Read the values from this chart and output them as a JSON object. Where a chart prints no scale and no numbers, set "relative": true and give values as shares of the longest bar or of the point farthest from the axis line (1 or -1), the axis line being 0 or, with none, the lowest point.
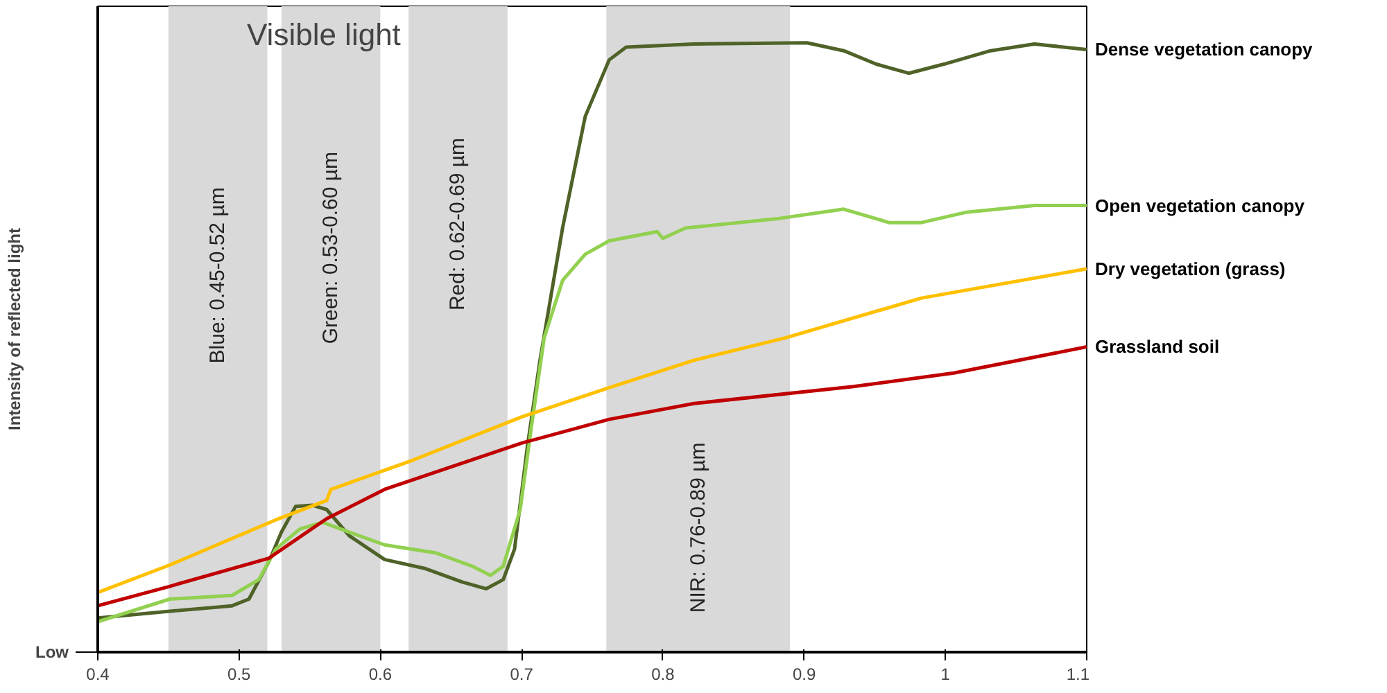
{
  "chart_data": {
    "type": "line",
    "relative": true,
    "ylabel": "Intensity of reflected light",
    "xlim": [
      0.4,
      1.1
    ],
    "xticks": [
      0.4,
      0.5,
      0.6,
      0.7,
      0.8,
      0.9,
      1,
      1.1
    ],
    "grid": false,
    "annotations": [
      "Visible light",
      "Low"
    ],
    "bands": [
      {
        "axis": "x",
        "from": 0.45,
        "to": 0.52,
        "label": "Blue: 0.45-0.52 µm",
        "color": "#d9d9d9"
      },
      {
        "axis": "x",
        "from": 0.53,
        "to": 0.6,
        "label": "Green: 0.53-0.60 µm",
        "color": "#d9d9d9"
      },
      {
        "axis": "x",
        "from": 0.62,
        "to": 0.69,
        "label": "Red: 0.62-0.69 µm",
        "color": "#d9d9d9"
      },
      {
        "axis": "x",
        "from": 0.76,
        "to": 0.89,
        "label": "NIR: 0.76-0.89 µm",
        "color": "#d9d9d9"
      }
    ],
    "series": [
      {
        "name": "Dense vegetation canopy",
        "color": "#4f6228",
        "x": [
          0.4,
          0.451,
          0.495,
          0.507,
          0.521,
          0.53,
          0.54,
          0.552,
          0.562,
          0.578,
          0.603,
          0.632,
          0.658,
          0.675,
          0.687,
          0.695,
          0.704,
          0.713,
          0.729,
          0.745,
          0.762,
          0.774,
          0.822,
          0.902,
          0.928,
          0.951,
          0.974,
          0.999,
          1.032,
          1.063,
          1.1
        ],
        "values": [
          0.056,
          0.067,
          0.076,
          0.087,
          0.148,
          0.197,
          0.239,
          0.241,
          0.234,
          0.191,
          0.152,
          0.137,
          0.115,
          0.104,
          0.119,
          0.169,
          0.336,
          0.479,
          0.696,
          0.879,
          0.972,
          0.993,
          0.998,
          1.0,
          0.987,
          0.965,
          0.95,
          0.965,
          0.987,
          0.998,
          0.989
        ]
      },
      {
        "name": "Open vegetation canopy",
        "color": "#92d050",
        "x": [
          0.4,
          0.451,
          0.495,
          0.514,
          0.526,
          0.543,
          0.559,
          0.578,
          0.603,
          0.639,
          0.665,
          0.678,
          0.687,
          0.699,
          0.707,
          0.716,
          0.729,
          0.745,
          0.762,
          0.796,
          0.8,
          0.816,
          0.88,
          0.928,
          0.96,
          0.983,
          1.015,
          1.063,
          1.1
        ],
        "values": [
          0.05,
          0.087,
          0.093,
          0.119,
          0.169,
          0.202,
          0.213,
          0.197,
          0.176,
          0.163,
          0.141,
          0.126,
          0.141,
          0.234,
          0.371,
          0.516,
          0.61,
          0.653,
          0.675,
          0.69,
          0.679,
          0.696,
          0.711,
          0.727,
          0.705,
          0.705,
          0.722,
          0.733,
          0.733
        ]
      },
      {
        "name": "Dry vegetation (grass)",
        "color": "#ffc000",
        "x": [
          0.4,
          0.451,
          0.526,
          0.562,
          0.565,
          0.623,
          0.7,
          0.762,
          0.822,
          0.887,
          0.983,
          1.1
        ],
        "values": [
          0.098,
          0.143,
          0.217,
          0.249,
          0.267,
          0.315,
          0.386,
          0.434,
          0.479,
          0.516,
          0.581,
          0.629
        ]
      },
      {
        "name": "Grassland  soil",
        "color": "#c00000",
        "x": [
          0.4,
          0.451,
          0.521,
          0.562,
          0.603,
          0.7,
          0.762,
          0.822,
          0.935,
          1.006,
          1.1
        ],
        "values": [
          0.076,
          0.108,
          0.154,
          0.219,
          0.267,
          0.343,
          0.382,
          0.408,
          0.436,
          0.458,
          0.501
        ]
      }
    ]
  }
}
